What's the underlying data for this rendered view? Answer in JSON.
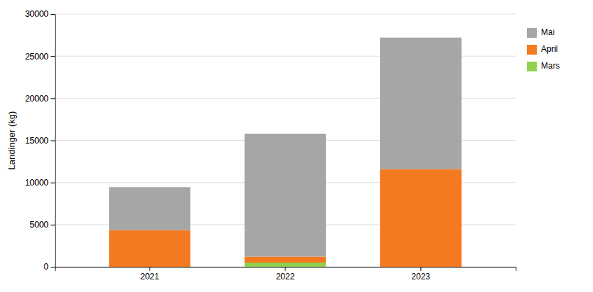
{
  "chart_data": {
    "type": "bar",
    "stacked": true,
    "categories": [
      "2021",
      "2022",
      "2023"
    ],
    "series": [
      {
        "name": "Mars",
        "color": "#92d050",
        "values": [
          0,
          500,
          0
        ]
      },
      {
        "name": "April",
        "color": "#f47920",
        "values": [
          4350,
          700,
          11600
        ]
      },
      {
        "name": "Mai",
        "color": "#a6a6a6",
        "values": [
          5100,
          14600,
          15600
        ]
      }
    ],
    "ylabel": "Landinger (kg)",
    "ylim": [
      0,
      30000
    ],
    "yticks": [
      0,
      5000,
      10000,
      15000,
      20000,
      25000,
      30000
    ],
    "grid": true,
    "legend": "right"
  }
}
